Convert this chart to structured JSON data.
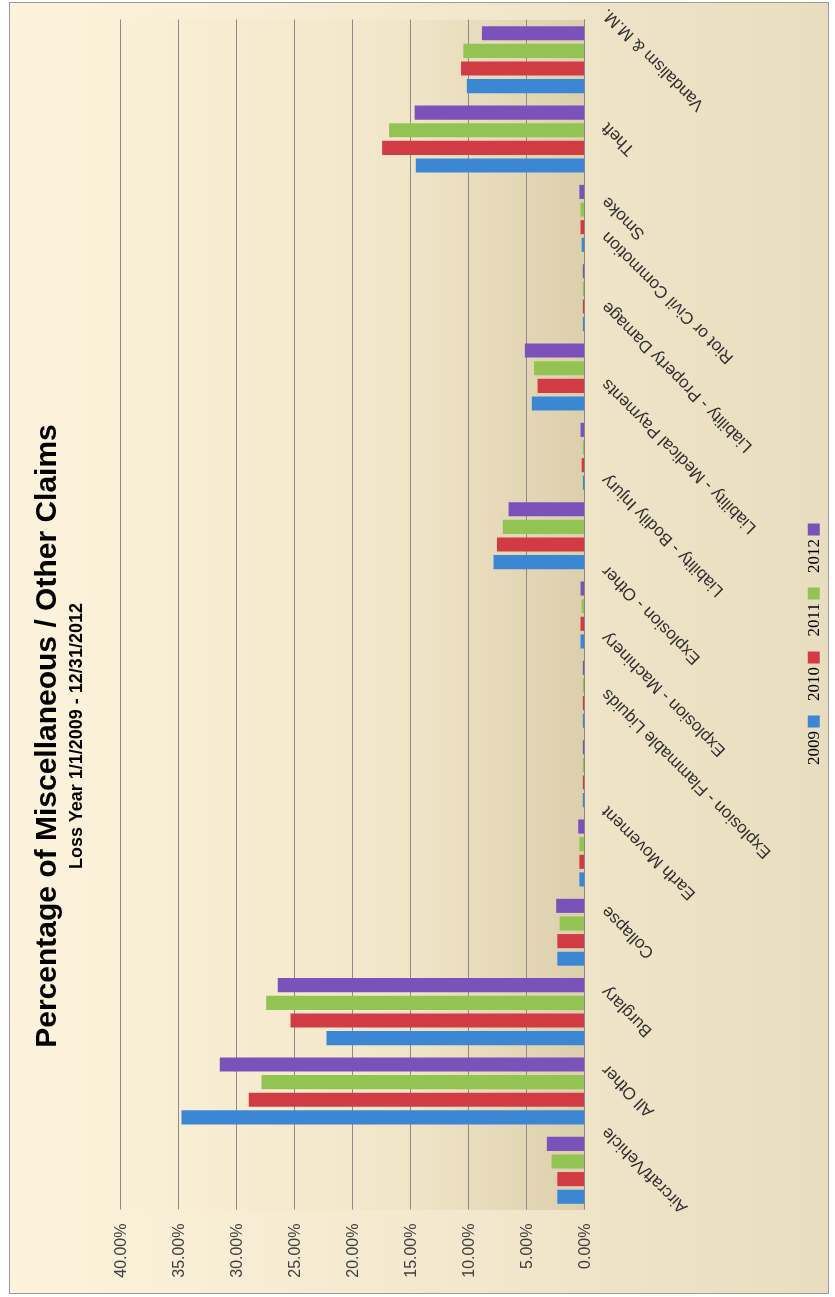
{
  "chart_data": {
    "type": "bar",
    "orientation": "horizontal",
    "title": "Percentage of Miscellaneous / Other Claims",
    "subtitle": "Loss Year 1/1/2009 - 12/31/2012",
    "categories": [
      "Vandalism & M.M.",
      "Theft",
      "Smoke",
      "Riot or Civil Commotion",
      "Liability - Property Damage",
      "Liability - Medical Payments",
      "Liability - Bodily Injury",
      "Explosion - Other",
      "Explosion - Machinery",
      "Explosion - Flammable Liquids",
      "Earth Movement",
      "Collapse",
      "Burglary",
      "All Other",
      "Aircraft/Vehicle"
    ],
    "series": [
      {
        "name": "2009",
        "color": "#3b87d3",
        "values": [
          10.1,
          14.5,
          0.2,
          0.1,
          4.5,
          0.1,
          7.8,
          0.3,
          0.1,
          0.1,
          0.4,
          2.3,
          22.2,
          34.7,
          2.3
        ]
      },
      {
        "name": "2010",
        "color": "#d13c44",
        "values": [
          10.6,
          17.4,
          0.3,
          0.1,
          4.0,
          0.2,
          7.5,
          0.3,
          0.1,
          0.1,
          0.4,
          2.3,
          25.3,
          28.9,
          2.3
        ]
      },
      {
        "name": "2011",
        "color": "#93c353",
        "values": [
          10.4,
          16.8,
          0.3,
          0.1,
          4.3,
          0.1,
          7.0,
          0.2,
          0.1,
          0.1,
          0.4,
          2.1,
          27.4,
          27.8,
          2.8
        ]
      },
      {
        "name": "2012",
        "color": "#7b52b9",
        "values": [
          8.8,
          14.6,
          0.4,
          0.1,
          5.1,
          0.3,
          6.5,
          0.3,
          0.1,
          0.1,
          0.5,
          2.4,
          26.4,
          31.4,
          3.2
        ]
      }
    ],
    "xlim": [
      40,
      0
    ],
    "xticks": [
      {
        "value": 40,
        "label": "40.00%"
      },
      {
        "value": 35,
        "label": "35.00%"
      },
      {
        "value": 30,
        "label": "30.00%"
      },
      {
        "value": 25,
        "label": "25.00%"
      },
      {
        "value": 20,
        "label": "20.00%"
      },
      {
        "value": 15,
        "label": "15.00%"
      },
      {
        "value": 10,
        "label": "10.00%"
      },
      {
        "value": 5,
        "label": "5.00%"
      },
      {
        "value": 0,
        "label": "0.00%"
      }
    ],
    "grid": "x",
    "legend": "right"
  }
}
